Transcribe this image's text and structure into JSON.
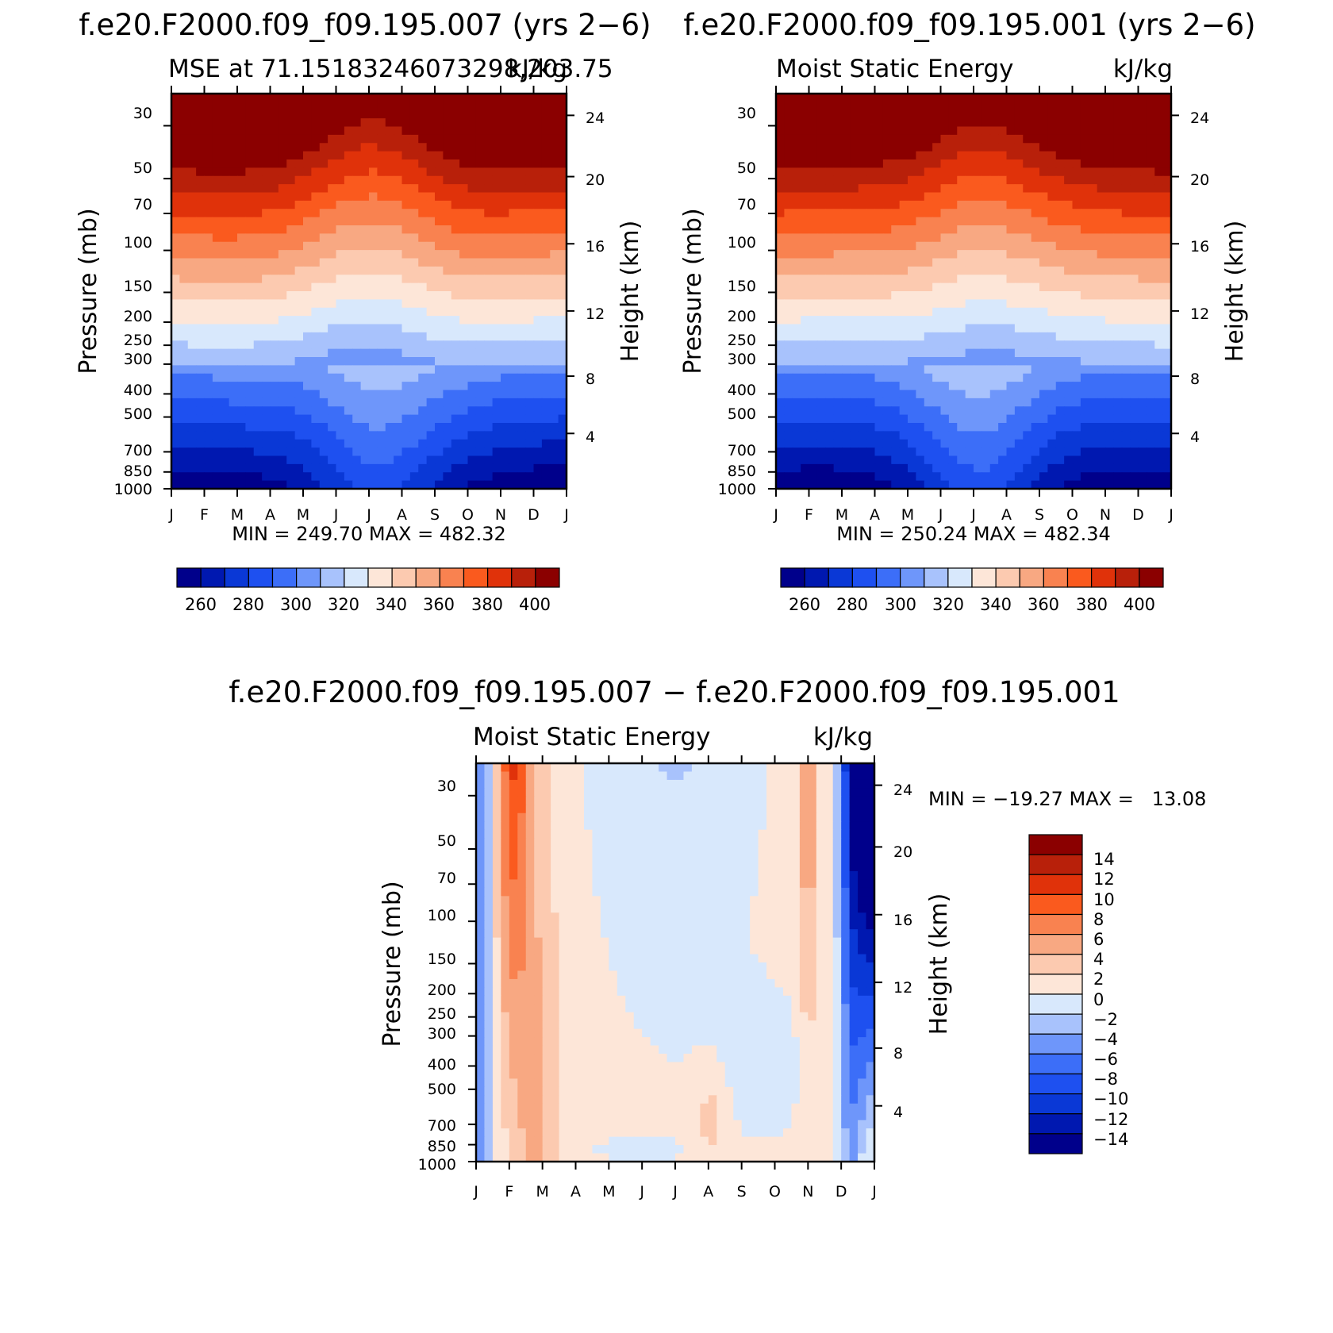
{
  "chart_data": [
    {
      "type": "heatmap",
      "panel": "top-left",
      "title": "f.e20.F2000.f09_f09.195.007 (yrs 2−6)",
      "left_label": "MSE at 71.15183246073298,203.75",
      "right_label": "kJ/kg",
      "x_tick_labels": [
        "J",
        "F",
        "M",
        "A",
        "M",
        "J",
        "J",
        "A",
        "S",
        "O",
        "N",
        "D",
        "J"
      ],
      "y_tick_labels": [
        "30",
        "50",
        "70",
        "100",
        "150",
        "200",
        "250",
        "300",
        "400",
        "500",
        "700",
        "850",
        "1000"
      ],
      "height_tick_labels": [
        "24",
        "20",
        "16",
        "12",
        "8",
        "4"
      ],
      "ylabel": "Pressure (mb)",
      "ylabel_right": "Height (km)",
      "min_max_text": "MIN = 249.70 MAX = 482.32",
      "min": 249.7,
      "max": 482.32,
      "colorbar_labels": [
        "260",
        "280",
        "300",
        "320",
        "340",
        "360",
        "380",
        "400"
      ],
      "contour_levels": [
        260,
        270,
        280,
        290,
        300,
        310,
        320,
        330,
        340,
        350,
        360,
        370,
        380,
        390,
        400
      ],
      "field": "moist static energy, monthly climatology vs pressure"
    },
    {
      "type": "heatmap",
      "panel": "top-right",
      "title": "f.e20.F2000.f09_f09.195.001 (yrs 2−6)",
      "left_label": "Moist Static Energy",
      "right_label": "kJ/kg",
      "x_tick_labels": [
        "J",
        "F",
        "M",
        "A",
        "M",
        "J",
        "J",
        "A",
        "S",
        "O",
        "N",
        "D",
        "J"
      ],
      "y_tick_labels": [
        "30",
        "50",
        "70",
        "100",
        "150",
        "200",
        "250",
        "300",
        "400",
        "500",
        "700",
        "850",
        "1000"
      ],
      "height_tick_labels": [
        "24",
        "20",
        "16",
        "12",
        "8",
        "4"
      ],
      "ylabel": "Pressure (mb)",
      "ylabel_right": "Height (km)",
      "min_max_text": "MIN = 250.24 MAX = 482.34",
      "min": 250.24,
      "max": 482.34,
      "colorbar_labels": [
        "260",
        "280",
        "300",
        "320",
        "340",
        "360",
        "380",
        "400"
      ],
      "contour_levels": [
        260,
        270,
        280,
        290,
        300,
        310,
        320,
        330,
        340,
        350,
        360,
        370,
        380,
        390,
        400
      ],
      "field": "moist static energy, monthly climatology vs pressure"
    },
    {
      "type": "heatmap",
      "panel": "bottom",
      "title": "f.e20.F2000.f09_f09.195.007 − f.e20.F2000.f09_f09.195.001",
      "left_label": "Moist Static Energy",
      "right_label": "kJ/kg",
      "x_tick_labels": [
        "J",
        "F",
        "M",
        "A",
        "M",
        "J",
        "J",
        "A",
        "S",
        "O",
        "N",
        "D",
        "J"
      ],
      "y_tick_labels": [
        "30",
        "50",
        "70",
        "100",
        "150",
        "200",
        "250",
        "300",
        "400",
        "500",
        "700",
        "850",
        "1000"
      ],
      "height_tick_labels": [
        "24",
        "20",
        "16",
        "12",
        "8",
        "4"
      ],
      "ylabel": "Pressure (mb)",
      "ylabel_right": "Height (km)",
      "min_max_text": "MIN = −19.27 MAX =   13.08",
      "min": -19.27,
      "max": 13.08,
      "colorbar_labels": [
        "14",
        "12",
        "10",
        "8",
        "6",
        "4",
        "2",
        "0",
        "−2",
        "−4",
        "−6",
        "−8",
        "−10",
        "−12",
        "−14"
      ],
      "contour_levels": [
        -14,
        -12,
        -10,
        -8,
        -6,
        -4,
        -2,
        0,
        2,
        4,
        6,
        8,
        10,
        12,
        14
      ],
      "field": "difference in moist static energy"
    }
  ],
  "colors": {
    "diverging_16": [
      "#00008b",
      "#0018b0",
      "#0a38d6",
      "#1e50f0",
      "#3c6ef8",
      "#6e96fa",
      "#a8c2fc",
      "#d8e8fc",
      "#fde6d8",
      "#fccab0",
      "#f8a882",
      "#f98250",
      "#fa5a1e",
      "#e0320a",
      "#b8200a",
      "#8b0000"
    ]
  }
}
